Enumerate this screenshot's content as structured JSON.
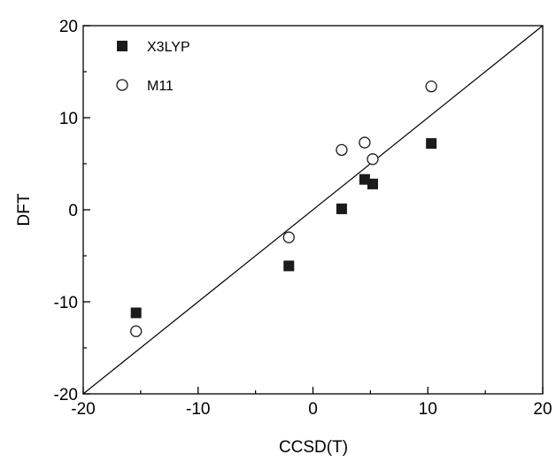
{
  "chart_data": {
    "type": "scatter",
    "title": "",
    "xlabel": "CCSD(T)",
    "ylabel": "DFT",
    "xlim": [
      -20,
      20
    ],
    "ylim": [
      -20,
      20
    ],
    "xticks": [
      "-20",
      "-10",
      "0",
      "10",
      "20"
    ],
    "yticks": [
      "-20",
      "-10",
      "0",
      "10",
      "20"
    ],
    "xtick_values": [
      -20,
      -10,
      0,
      10,
      20
    ],
    "ytick_values": [
      -20,
      -10,
      0,
      10,
      20
    ],
    "grid": false,
    "legend_position": "top-left",
    "reference_line": {
      "type": "y=x",
      "from": [
        -20,
        -20
      ],
      "to": [
        20,
        20
      ]
    },
    "series": [
      {
        "name": "X3LYP",
        "marker": "filled-square",
        "color": "#1a1a1a",
        "points": [
          {
            "x": -15.4,
            "y": -11.2
          },
          {
            "x": -2.1,
            "y": -6.1
          },
          {
            "x": 2.5,
            "y": 0.1
          },
          {
            "x": 4.5,
            "y": 3.3
          },
          {
            "x": 5.2,
            "y": 2.8
          },
          {
            "x": 10.3,
            "y": 7.2
          }
        ]
      },
      {
        "name": "M11",
        "marker": "open-circle",
        "color": "#1a1a1a",
        "points": [
          {
            "x": -15.4,
            "y": -13.2
          },
          {
            "x": -2.1,
            "y": -3.0
          },
          {
            "x": 2.5,
            "y": 6.5
          },
          {
            "x": 4.5,
            "y": 7.3
          },
          {
            "x": 5.2,
            "y": 5.5
          },
          {
            "x": 10.3,
            "y": 13.4
          }
        ]
      }
    ]
  }
}
